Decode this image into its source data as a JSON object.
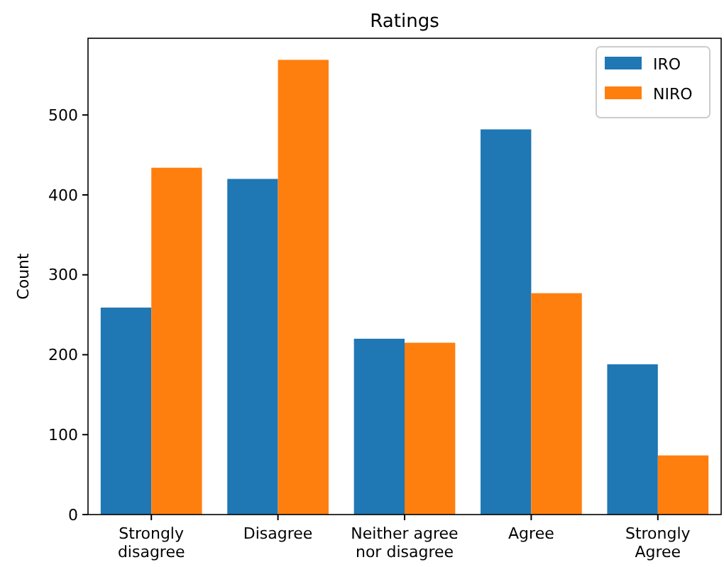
{
  "chart_data": {
    "type": "bar",
    "title": "Ratings",
    "ylabel": "Count",
    "categories": [
      "Strongly\ndisagree",
      "Disagree",
      "Neither agree\nnor disagree",
      "Agree",
      "Strongly\nAgree"
    ],
    "series": [
      {
        "name": "IRO",
        "color": "#1f77b4",
        "values": [
          259,
          420,
          220,
          482,
          188
        ]
      },
      {
        "name": "NIRO",
        "color": "#ff7f0e",
        "values": [
          434,
          569,
          215,
          277,
          74
        ]
      }
    ],
    "ylim": [
      0,
      596
    ],
    "yticks": [
      0,
      100,
      200,
      300,
      400,
      500
    ],
    "legend": "top right",
    "grid": false
  }
}
